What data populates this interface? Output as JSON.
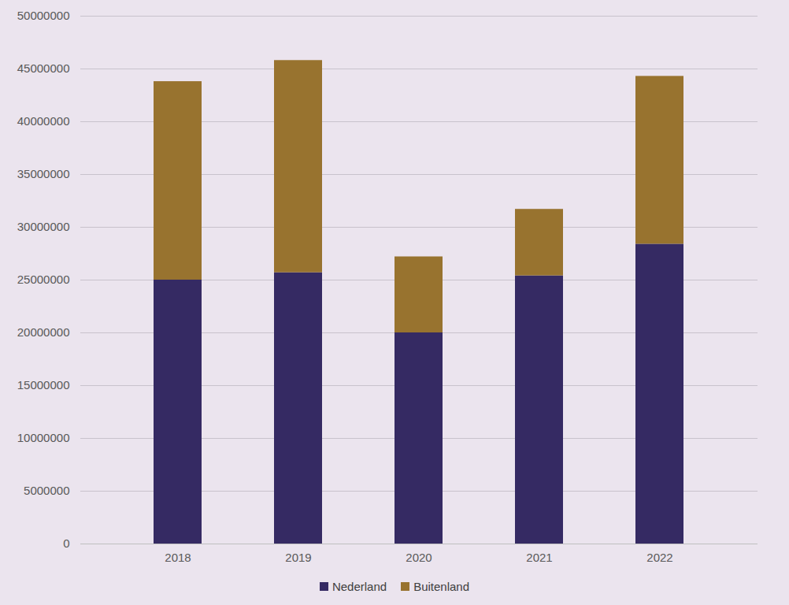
{
  "chart_data": {
    "type": "bar",
    "stacked": true,
    "categories": [
      "2018",
      "2019",
      "2020",
      "2021",
      "2022"
    ],
    "series": [
      {
        "name": "Nederland",
        "color": "#352a63",
        "values": [
          25000000,
          25700000,
          20000000,
          25400000,
          28400000
        ]
      },
      {
        "name": "Buitenland",
        "color": "#98732f",
        "values": [
          18800000,
          20100000,
          7200000,
          6300000,
          15900000
        ]
      }
    ],
    "ylim": [
      0,
      50000000
    ],
    "yticks": [
      0,
      5000000,
      10000000,
      15000000,
      20000000,
      25000000,
      30000000,
      35000000,
      40000000,
      45000000,
      50000000
    ],
    "grid": true,
    "legend": "bottom"
  }
}
